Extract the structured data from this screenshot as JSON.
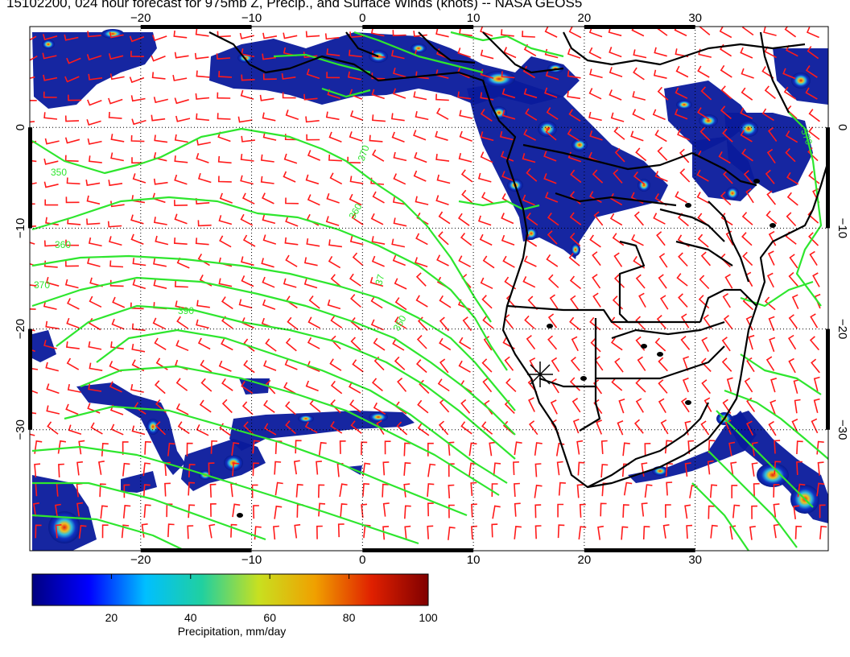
{
  "title": "15102200, 024 hour forecast for 975mb Z, Precip., and Surface Winds (knots) -- NASA GEOS5",
  "map": {
    "lon_range": [
      -30,
      42
    ],
    "lat_range": [
      -42,
      10
    ],
    "lon_ticks": [
      {
        "value": -20,
        "label": "−20"
      },
      {
        "value": -10,
        "label": "−10"
      },
      {
        "value": 0,
        "label": "0"
      },
      {
        "value": 10,
        "label": "10"
      },
      {
        "value": 20,
        "label": "20"
      },
      {
        "value": 30,
        "label": "30"
      }
    ],
    "lat_ticks": [
      {
        "value": 0,
        "label": "0"
      },
      {
        "value": -10,
        "label": "−10"
      },
      {
        "value": -20,
        "label": "−20"
      },
      {
        "value": -30,
        "label": "−30"
      }
    ],
    "contour_labels": [
      "350",
      "360",
      "370",
      "390",
      "370",
      "360",
      "37",
      "350",
      "370"
    ],
    "colors": {
      "contour": "#2ee62e",
      "wind_barb": "#ff1a1a",
      "coastline": "#000000",
      "precip_low": "#0a1a9c",
      "precip_mid": "#37b8e8",
      "precip_high": "#d81818"
    }
  },
  "colorbar": {
    "label": "Precipitation, mm/day",
    "range": [
      0,
      100
    ],
    "ticks": [
      {
        "value": 20,
        "label": "20"
      },
      {
        "value": 40,
        "label": "40"
      },
      {
        "value": 60,
        "label": "60"
      },
      {
        "value": 80,
        "label": "80"
      },
      {
        "value": 100,
        "label": "100"
      }
    ],
    "colors": [
      "#000080",
      "#0000ff",
      "#00bfff",
      "#20d0a0",
      "#c8e020",
      "#f0a000",
      "#e02000",
      "#800000"
    ]
  }
}
